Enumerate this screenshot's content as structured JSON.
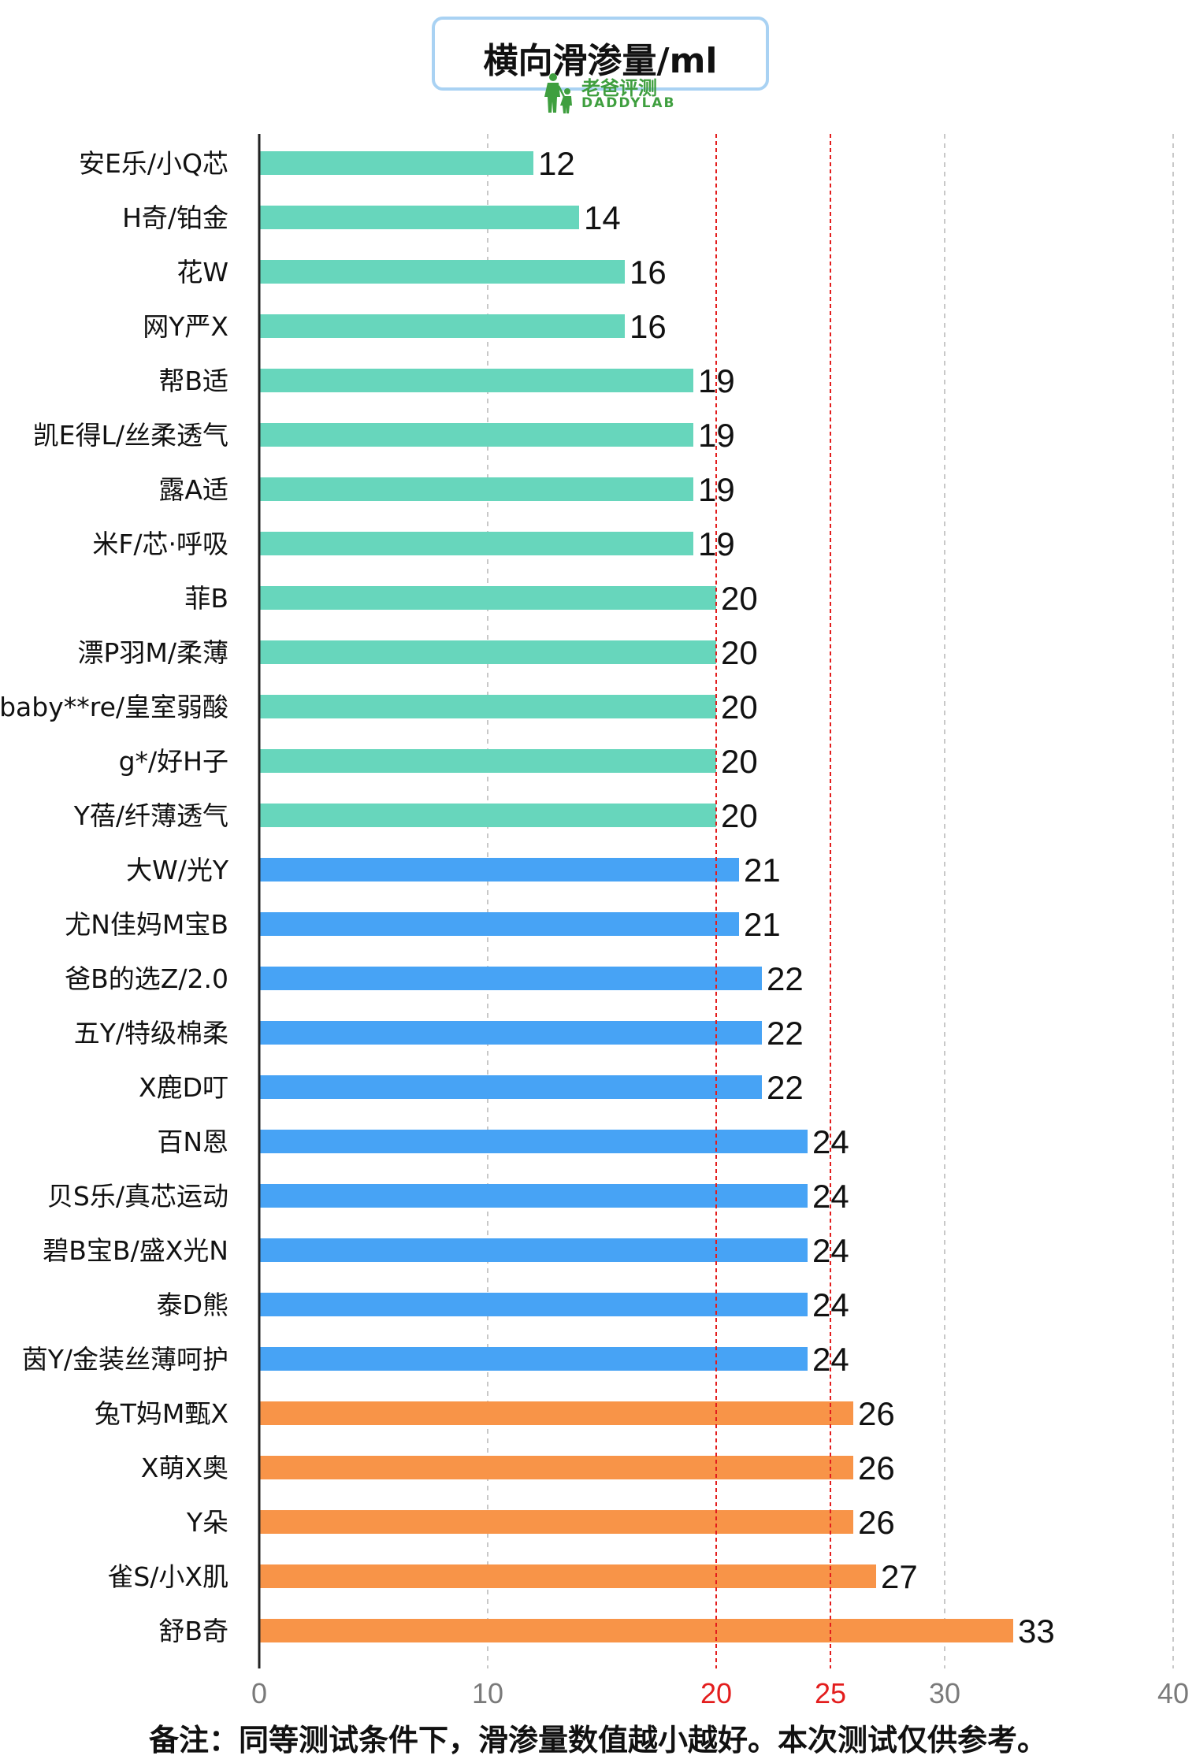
{
  "title": "横向滑渗量/ml",
  "logo": {
    "text_cn": "老爸评测",
    "text_en": "DADDYLAB"
  },
  "footnote": "备注：同等测试条件下，滑渗量数值越小越好。本次测试仅供参考。",
  "colors": {
    "green": "#67d6bc",
    "blue": "#47a3f5",
    "orange": "#f89448",
    "reference": "#e31d1d",
    "grid": "#c8c8c8",
    "axis": "#222222"
  },
  "chart_data": {
    "type": "bar",
    "orientation": "horizontal",
    "title": "横向滑渗量/ml",
    "xlim": [
      0,
      40
    ],
    "x_ticks": [
      0,
      10,
      20,
      25,
      30,
      40
    ],
    "reference_lines": [
      20,
      25
    ],
    "grid": true,
    "categories": [
      "安E乐/小Q芯",
      "H奇/铂金",
      "花W",
      "网Y严X",
      "帮B适",
      "凯E得L/丝柔透气",
      "露A适",
      "米F/芯·呼吸",
      "菲B",
      "漂P羽M/柔薄",
      "baby**re/皇室弱酸",
      "g*/好H子",
      "Y蓓/纤薄透气",
      "大W/光Y",
      "尤N佳妈M宝B",
      "爸B的选Z/2.0",
      "五Y/特级棉柔",
      "X鹿D叮",
      "百N恩",
      "贝S乐/真芯运动",
      "碧B宝B/盛X光N",
      "泰D熊",
      "茵Y/金装丝薄呵护",
      "兔T妈M甄X",
      "X萌X奥",
      "Y朵",
      "雀S/小X肌",
      "舒B奇"
    ],
    "values": [
      12,
      14,
      16,
      16,
      19,
      19,
      19,
      19,
      20,
      20,
      20,
      20,
      20,
      21,
      21,
      22,
      22,
      22,
      24,
      24,
      24,
      24,
      24,
      26,
      26,
      26,
      27,
      33
    ]
  }
}
